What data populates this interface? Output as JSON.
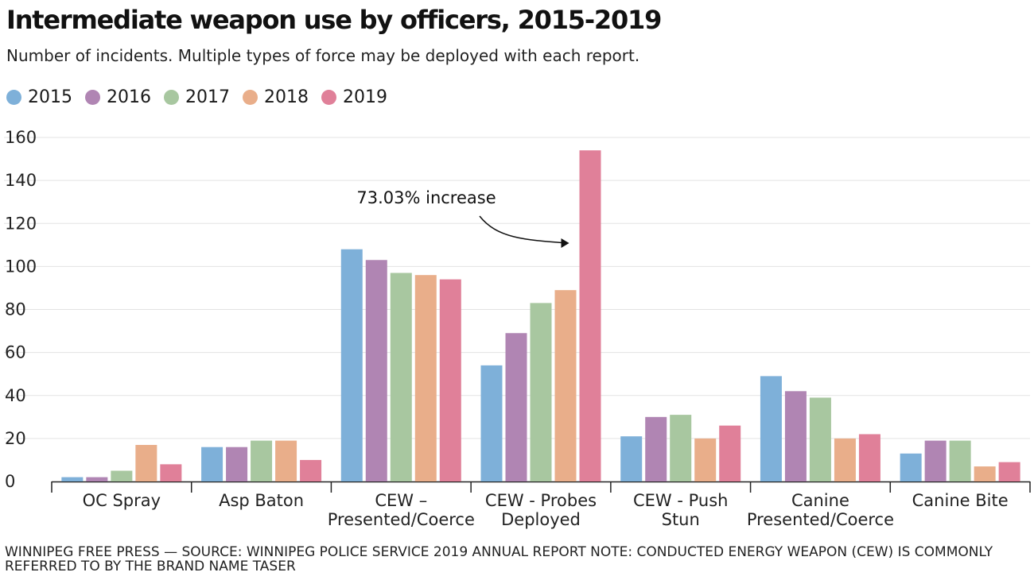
{
  "header": {
    "title": "Intermediate weapon use by officers, 2015-2019",
    "subtitle": "Number of incidents. Multiple types of force may be deployed with each report."
  },
  "legend": [
    {
      "label": "2015",
      "color": "#7eb0d9"
    },
    {
      "label": "2016",
      "color": "#b085b3"
    },
    {
      "label": "2017",
      "color": "#a8c7a0"
    },
    {
      "label": "2018",
      "color": "#e9ae8a"
    },
    {
      "label": "2019",
      "color": "#e08099"
    }
  ],
  "chart_data": {
    "type": "bar",
    "categories": [
      [
        "OC Spray"
      ],
      [
        "Asp Baton"
      ],
      [
        "CEW –",
        "Presented/Coerce"
      ],
      [
        "CEW - Probes",
        "Deployed"
      ],
      [
        "CEW - Push",
        "Stun"
      ],
      [
        "Canine",
        "Presented/Coerce"
      ],
      [
        "Canine Bite"
      ]
    ],
    "series": [
      {
        "name": "2015",
        "values": [
          2,
          16,
          108,
          54,
          21,
          49,
          13
        ]
      },
      {
        "name": "2016",
        "values": [
          2,
          16,
          103,
          69,
          30,
          42,
          19
        ]
      },
      {
        "name": "2017",
        "values": [
          5,
          19,
          97,
          83,
          31,
          39,
          19
        ]
      },
      {
        "name": "2018",
        "values": [
          17,
          19,
          96,
          89,
          20,
          20,
          7
        ]
      },
      {
        "name": "2019",
        "values": [
          8,
          10,
          94,
          154,
          26,
          22,
          9
        ]
      }
    ],
    "ylim": [
      0,
      160
    ],
    "yticks": [
      0,
      20,
      40,
      60,
      80,
      100,
      120,
      140,
      160
    ],
    "grid": true,
    "legend_position": "top-left",
    "annotation": {
      "text": "73.03% increase",
      "category_index": 3,
      "series_index": 4
    }
  },
  "footer": {
    "text": "WINNIPEG FREE PRESS — SOURCE: WINNIPEG POLICE SERVICE 2019 ANNUAL REPORT NOTE: CONDUCTED ENERGY WEAPON (CEW) IS COMMONLY REFERRED TO BY THE BRAND NAME TASER"
  }
}
